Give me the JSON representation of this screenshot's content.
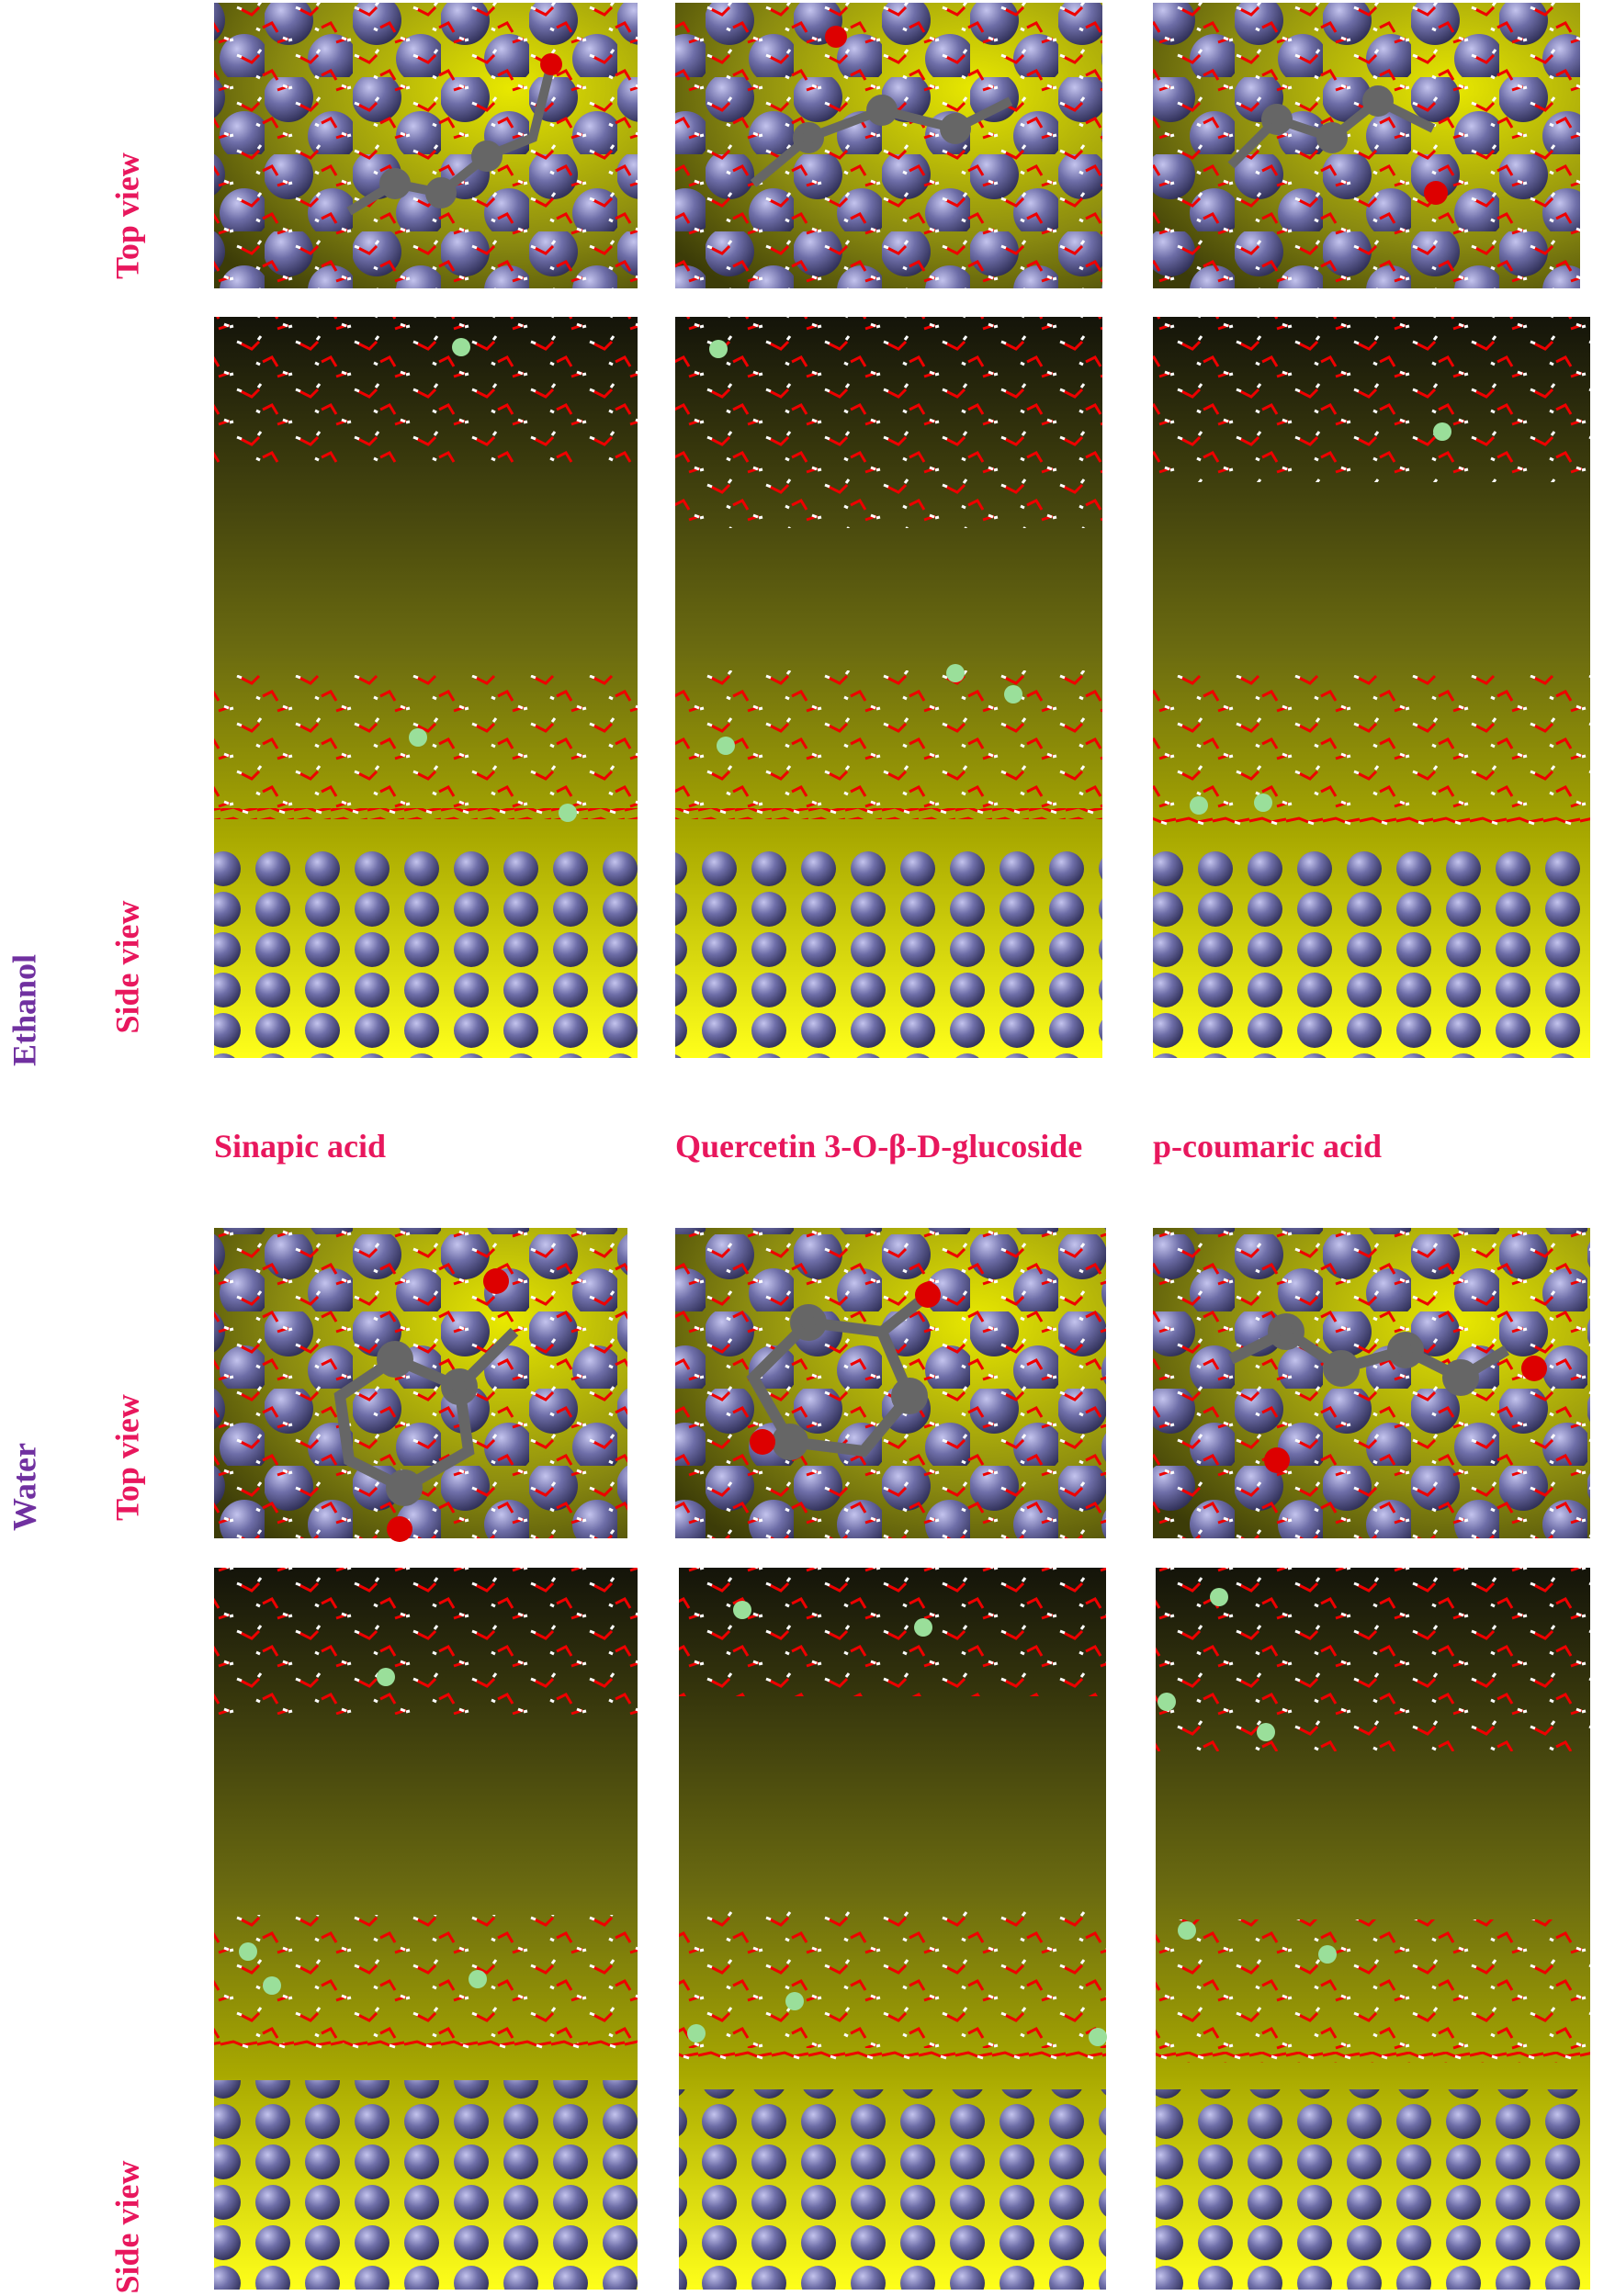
{
  "rows": [
    {
      "label": "Ethanol",
      "views": [
        "Top view",
        "Side view"
      ]
    },
    {
      "label": "Water",
      "views": [
        "Top view",
        "Side view"
      ]
    }
  ],
  "columns": [
    "Sinapic acid",
    "Quercetin 3-O-β-D-glucoside",
    "p-coumaric acid"
  ]
}
